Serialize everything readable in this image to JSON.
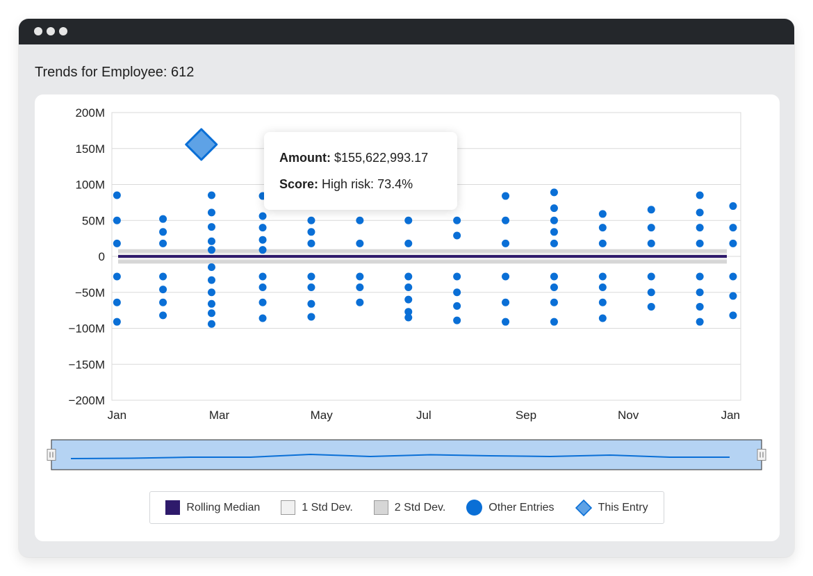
{
  "page": {
    "title": "Trends for Employee: 612"
  },
  "tooltip": {
    "amount_label": "Amount:",
    "amount_value": "$155,622,993.17",
    "score_label": "Score:",
    "score_value": "High risk: 73.4%"
  },
  "legend": [
    {
      "label": "Rolling Median",
      "swatch": "median"
    },
    {
      "label": "1 Std Dev.",
      "swatch": "std1"
    },
    {
      "label": "2 Std Dev.",
      "swatch": "std2"
    },
    {
      "label": "Other Entries",
      "swatch": "other"
    },
    {
      "label": "This Entry",
      "swatch": "this"
    }
  ],
  "colors": {
    "other_entries": "#0a6fd6",
    "this_entry_fill": "#5ea2e6",
    "this_entry_stroke": "#0a6fd6",
    "rolling_median": "#2e1a6b",
    "std1_band": "#f1f1f1",
    "std2_band": "#d6d6d6",
    "navigator_fill": "#b5d3f3",
    "navigator_line": "#0a6fd6",
    "grid": "#d9d9d9"
  },
  "chart_data": {
    "type": "scatter",
    "title": "",
    "xlabel": "",
    "ylabel": "",
    "y_ticks": [
      "200M",
      "150M",
      "100M",
      "50M",
      "0",
      "−50M",
      "−100M",
      "−150M",
      "−200M"
    ],
    "ylim": [
      -200,
      200
    ],
    "y_unit": "M",
    "x_ticks": [
      {
        "label": "Jan",
        "month": 0
      },
      {
        "label": "Mar",
        "month": 2
      },
      {
        "label": "May",
        "month": 4
      },
      {
        "label": "Jul",
        "month": 6
      },
      {
        "label": "Sep",
        "month": 8
      },
      {
        "label": "Nov",
        "month": 10
      },
      {
        "label": "Jan",
        "month": 12
      }
    ],
    "xlim": [
      -0.1,
      12.2
    ],
    "rolling_median": 0,
    "std1_band": [
      -5,
      5
    ],
    "std2_band": [
      -10,
      10
    ],
    "grid": "horizontal",
    "legend_position": "bottom",
    "series": [
      {
        "name": "Other Entries",
        "points": [
          {
            "x": 0,
            "y": [
              85,
              50,
              18,
              -28,
              -64,
              -91
            ]
          },
          {
            "x": 0.9,
            "y": [
              52,
              34,
              18,
              -28,
              -46,
              -64,
              -82
            ]
          },
          {
            "x": 1.85,
            "y": [
              85,
              61,
              41,
              21,
              9,
              -15,
              -33,
              -50,
              -66,
              -79,
              -94
            ]
          },
          {
            "x": 2.85,
            "y": [
              84,
              56,
              40,
              23,
              9,
              -28,
              -43,
              -64,
              -86
            ]
          },
          {
            "x": 3.8,
            "y": [
              50,
              34,
              18,
              -28,
              -43,
              -66,
              -84
            ]
          },
          {
            "x": 4.75,
            "y": [
              50,
              18,
              -28,
              -43,
              -64
            ]
          },
          {
            "x": 5.7,
            "y": [
              50,
              18,
              -28,
              -43,
              -60,
              -77,
              -85
            ]
          },
          {
            "x": 6.65,
            "y": [
              50,
              29,
              -28,
              -50,
              -69,
              -89
            ]
          },
          {
            "x": 7.6,
            "y": [
              84,
              50,
              18,
              -28,
              -64,
              -91
            ]
          },
          {
            "x": 8.55,
            "y": [
              89,
              67,
              50,
              34,
              18,
              -28,
              -43,
              -64,
              -91
            ]
          },
          {
            "x": 9.5,
            "y": [
              59,
              40,
              18,
              -28,
              -43,
              -64,
              -86
            ]
          },
          {
            "x": 10.45,
            "y": [
              65,
              40,
              18,
              -28,
              -50,
              -70
            ]
          },
          {
            "x": 11.4,
            "y": [
              85,
              61,
              40,
              18,
              -28,
              -50,
              -70,
              -91
            ]
          },
          {
            "x": 12.05,
            "y": [
              70,
              40,
              18,
              -28,
              -55,
              -82
            ]
          }
        ]
      },
      {
        "name": "This Entry",
        "points": [
          {
            "x": 1.65,
            "y": 155.6
          }
        ]
      }
    ],
    "navigator": {
      "values": [
        0,
        0.5,
        2,
        2,
        6,
        3,
        5.5,
        4,
        3,
        5,
        2,
        2
      ]
    }
  }
}
